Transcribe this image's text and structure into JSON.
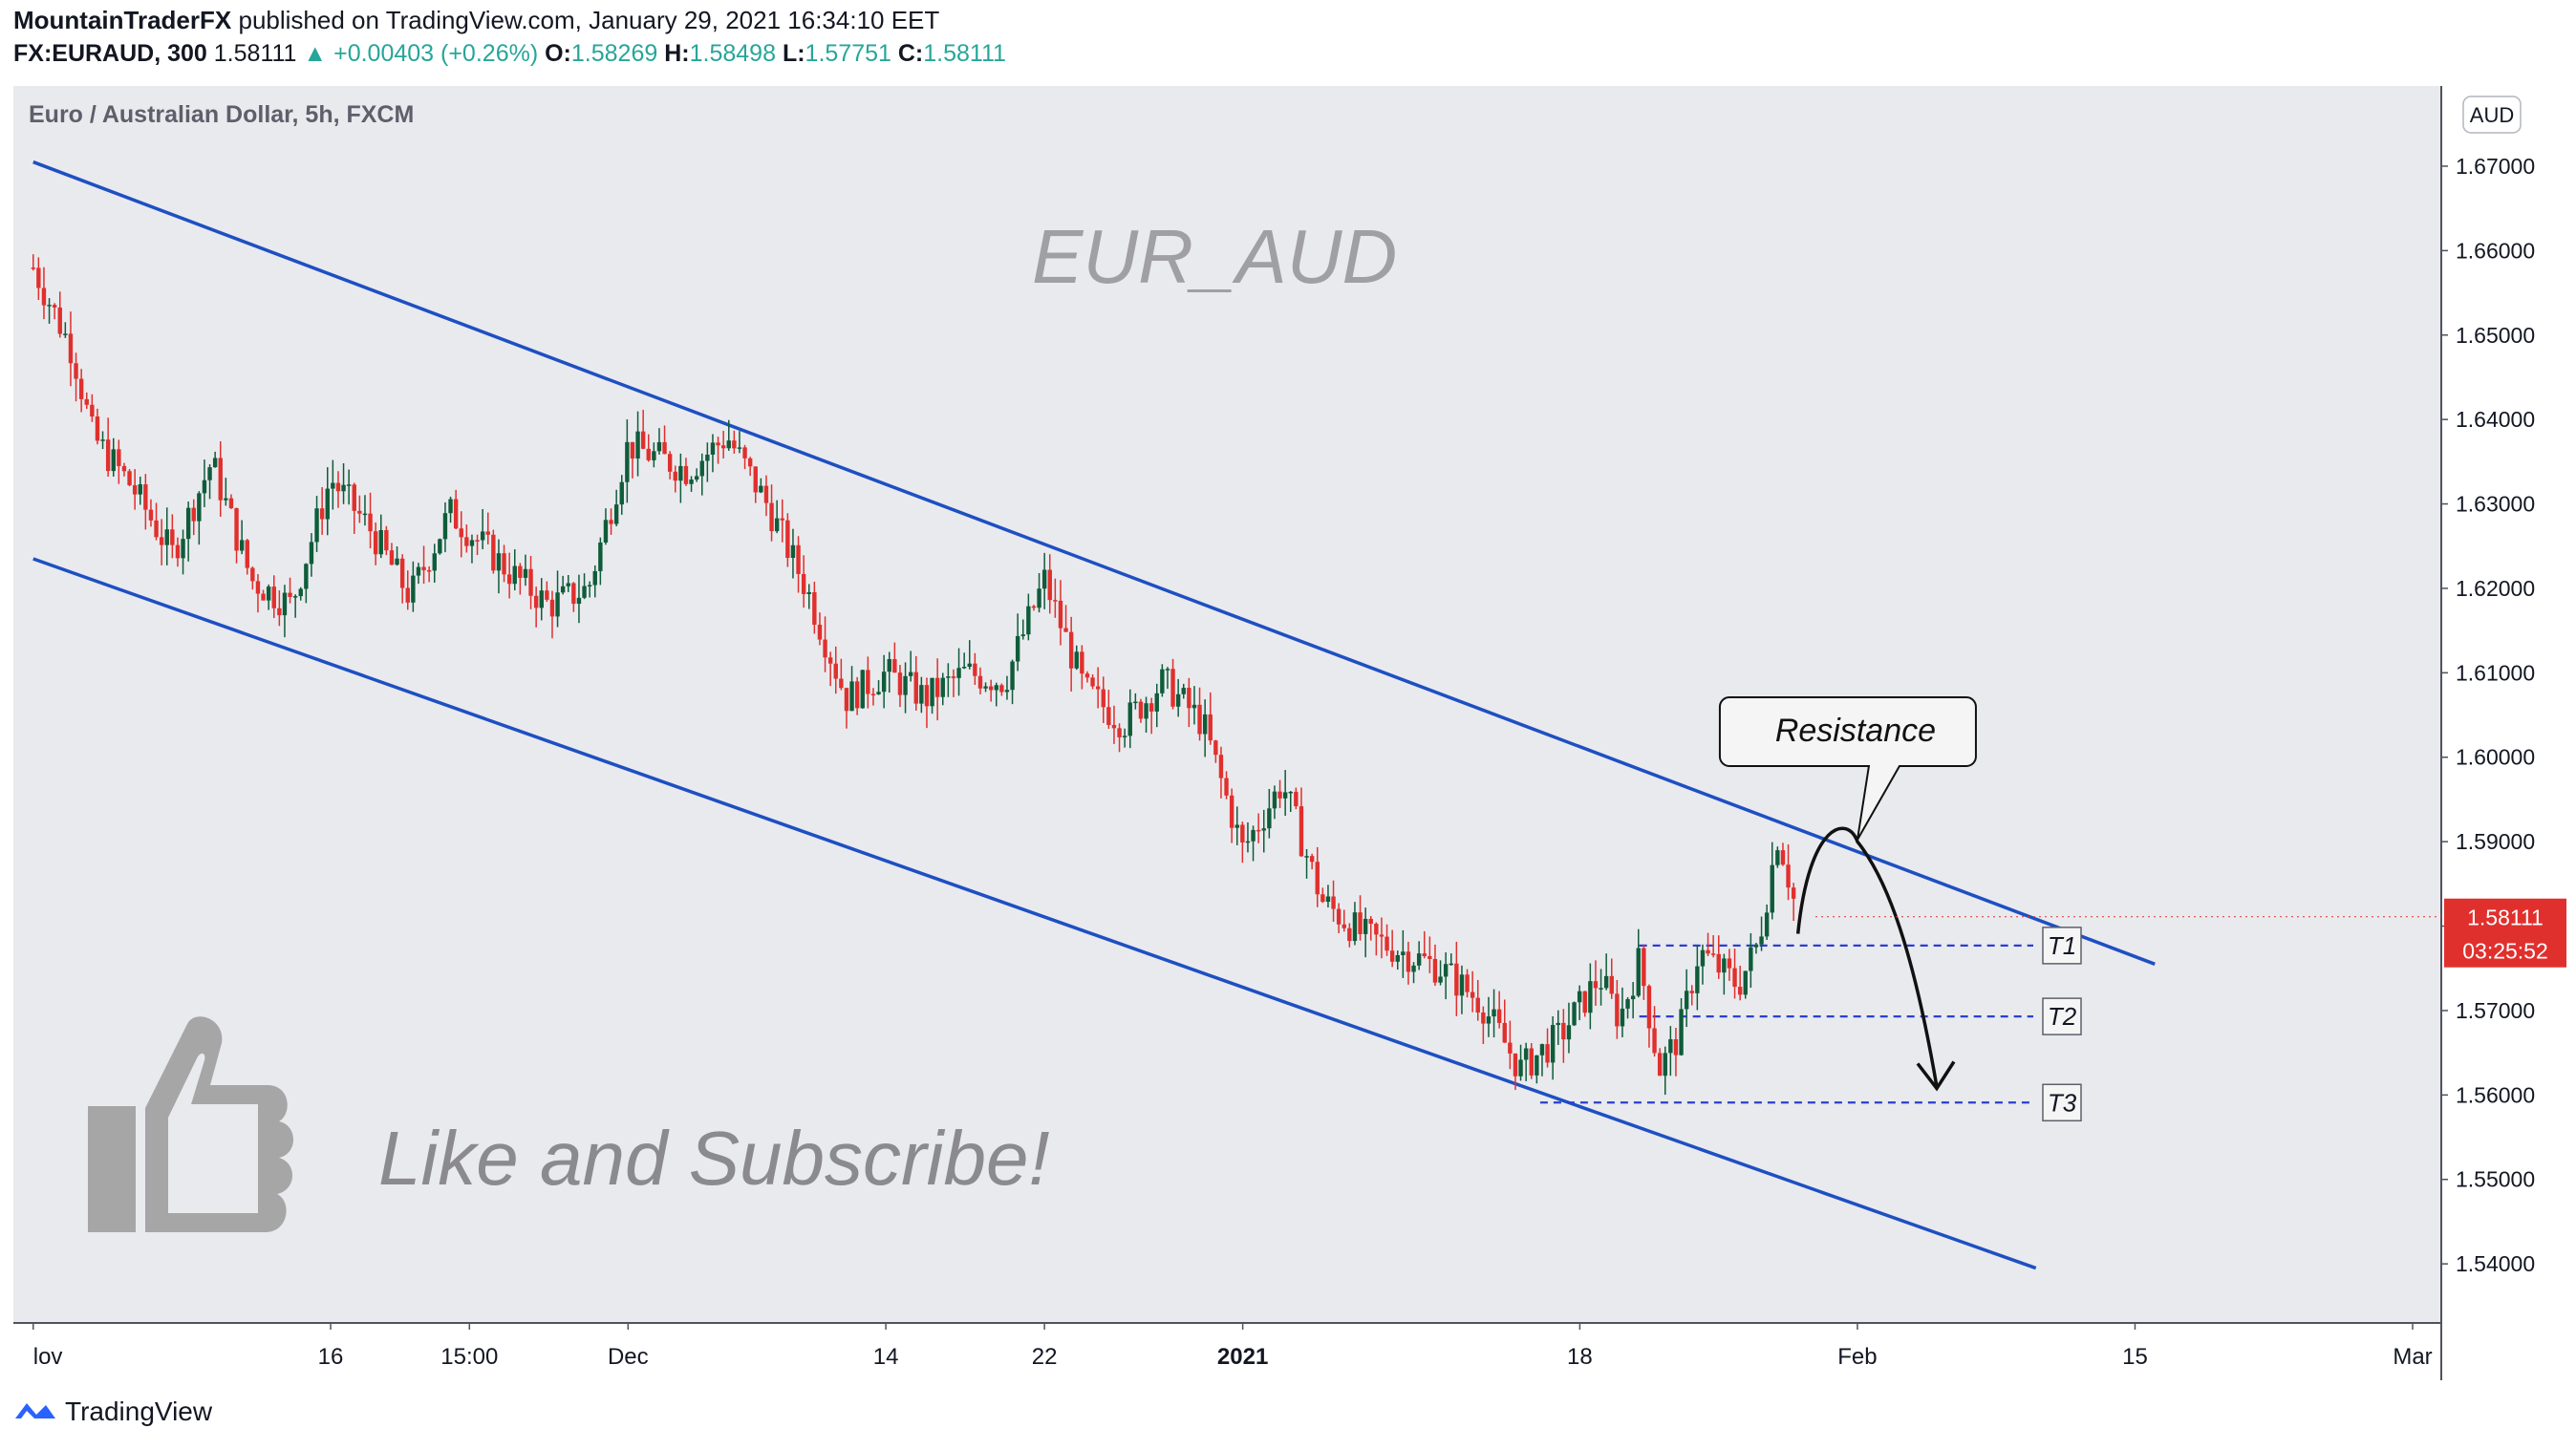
{
  "header": {
    "publisher": "MountainTraderFX",
    "published_text": "published on TradingView.com, January 29, 2021 16:34:10 EET",
    "symbol": "FX:EURAUD, 300",
    "last": "1.58111",
    "change": "▲ +0.00403 (+0.26%)",
    "o_label": "O:",
    "o_value": "1.58269",
    "h_label": "H:",
    "h_value": "1.58498",
    "l_label": "L:",
    "l_value": "1.57751",
    "c_label": "C:",
    "c_value": "1.58111"
  },
  "footer": {
    "brand": "TradingView"
  },
  "colors": {
    "bull": "#0f5c3a",
    "bear": "#e0302d",
    "channel": "#1e4fc2",
    "plot_bg": "#e9eaee",
    "price_tag": "#e0302d"
  },
  "chart_data": {
    "type": "candlestick",
    "title": "Euro / Australian Dollar, 5h, FXCM",
    "watermark": "EUR_AUD",
    "ylabel": "AUD",
    "ylim": [
      1.533,
      1.6795
    ],
    "y_ticks": [
      "1.54000",
      "1.55000",
      "1.56000",
      "1.57000",
      "1.58000",
      "1.59000",
      "1.60000",
      "1.61000",
      "1.62000",
      "1.63000",
      "1.64000",
      "1.65000",
      "1.66000",
      "1.67000"
    ],
    "x_ticks": [
      {
        "label": "lov",
        "date": "2020-11-01"
      },
      {
        "label": "16",
        "date": "2020-11-16"
      },
      {
        "label": "15:00",
        "date": "2020-11-23"
      },
      {
        "label": "Dec",
        "date": "2020-12-01"
      },
      {
        "label": "14",
        "date": "2020-12-14"
      },
      {
        "label": "22",
        "date": "2020-12-22"
      },
      {
        "label": "2021",
        "date": "2021-01-01"
      },
      {
        "label": "18",
        "date": "2021-01-18"
      },
      {
        "label": "Feb",
        "date": "2021-02-01"
      },
      {
        "label": "15",
        "date": "2021-02-15"
      },
      {
        "label": "Mar",
        "date": "2021-03-01"
      }
    ],
    "price_path": [
      [
        "2020-11-01",
        1.658
      ],
      [
        "2020-11-03",
        1.648
      ],
      [
        "2020-11-04",
        1.638
      ],
      [
        "2020-11-06",
        1.632
      ],
      [
        "2020-11-08",
        1.624
      ],
      [
        "2020-11-10",
        1.635
      ],
      [
        "2020-11-12",
        1.621
      ],
      [
        "2020-11-14",
        1.618
      ],
      [
        "2020-11-16",
        1.633
      ],
      [
        "2020-11-18",
        1.627
      ],
      [
        "2020-11-20",
        1.619
      ],
      [
        "2020-11-22",
        1.629
      ],
      [
        "2020-11-25",
        1.622
      ],
      [
        "2020-11-27",
        1.618
      ],
      [
        "2020-11-29",
        1.62
      ],
      [
        "2020-12-01",
        1.637
      ],
      [
        "2020-12-04",
        1.634
      ],
      [
        "2020-12-06",
        1.638
      ],
      [
        "2020-12-08",
        1.63
      ],
      [
        "2020-12-10",
        1.62
      ],
      [
        "2020-12-12",
        1.607
      ],
      [
        "2020-12-14",
        1.61
      ],
      [
        "2020-12-16",
        1.607
      ],
      [
        "2020-12-18",
        1.61
      ],
      [
        "2020-12-20",
        1.609
      ],
      [
        "2020-12-22",
        1.621
      ],
      [
        "2020-12-24",
        1.608
      ],
      [
        "2020-12-26",
        1.604
      ],
      [
        "2020-12-28",
        1.609
      ],
      [
        "2020-12-30",
        1.604
      ],
      [
        "2021-01-01",
        1.589
      ],
      [
        "2021-01-03",
        1.597
      ],
      [
        "2021-01-05",
        1.583
      ],
      [
        "2021-01-07",
        1.579
      ],
      [
        "2021-01-09",
        1.577
      ],
      [
        "2021-01-11",
        1.575
      ],
      [
        "2021-01-13",
        1.571
      ],
      [
        "2021-01-15",
        1.563
      ],
      [
        "2021-01-17",
        1.567
      ],
      [
        "2021-01-19",
        1.574
      ],
      [
        "2021-01-20",
        1.569
      ],
      [
        "2021-01-21",
        1.576
      ],
      [
        "2021-01-22",
        1.563
      ],
      [
        "2021-01-23",
        1.567
      ],
      [
        "2021-01-24",
        1.577
      ],
      [
        "2021-01-26",
        1.573
      ],
      [
        "2021-01-27",
        1.578
      ],
      [
        "2021-01-28",
        1.591
      ],
      [
        "2021-01-29",
        1.581
      ]
    ],
    "channel_lines": [
      {
        "name": "upper",
        "points": [
          [
            "2020-11-01",
            1.6705
          ],
          [
            "2021-02-16",
            1.5755
          ]
        ]
      },
      {
        "name": "lower",
        "points": [
          [
            "2020-11-01",
            1.6235
          ],
          [
            "2021-02-10",
            1.5395
          ]
        ]
      }
    ],
    "projection_arrow": {
      "points": [
        [
          "2021-01-29",
          1.58
        ],
        [
          "2021-02-01",
          1.59
        ],
        [
          "2021-02-05",
          1.561
        ]
      ]
    },
    "annotations": [
      {
        "text": "Resistance",
        "anchor": [
          "2021-02-01",
          1.59
        ]
      },
      {
        "text": "Like and Subscribe!"
      }
    ],
    "targets": [
      {
        "label": "T1",
        "price": 1.5777,
        "from": "2021-01-21"
      },
      {
        "label": "T2",
        "price": 1.5693,
        "from": "2021-01-21"
      },
      {
        "label": "T3",
        "price": 1.5591,
        "from": "2021-01-16"
      }
    ],
    "last_price": {
      "value": "1.58111",
      "countdown": "03:25:52"
    }
  }
}
